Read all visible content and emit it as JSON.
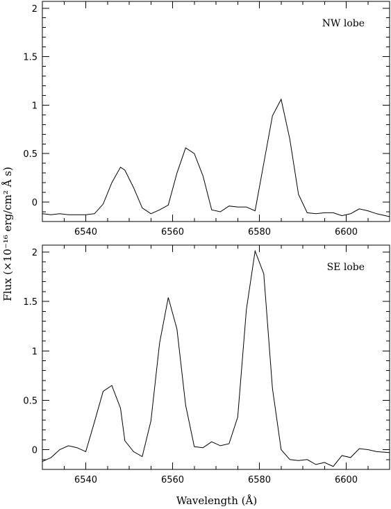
{
  "chart_data": {
    "type": "line",
    "xlabel": "Wavelength (Å)",
    "ylabel": "Flux (×10⁻¹⁶ erg/cm² Å s)",
    "panels": [
      {
        "annotation": "NW lobe",
        "xlim": [
          6530,
          6610
        ],
        "ylim": [
          -0.2,
          2.07
        ],
        "xticks": [
          6540,
          6560,
          6580,
          6600
        ],
        "yticks": [
          0,
          0.5,
          1,
          1.5,
          2
        ],
        "ytick_labels": [
          "0",
          "0.5",
          "1",
          "1.5",
          "2"
        ],
        "x": [
          6530,
          6532,
          6534,
          6536,
          6538,
          6540,
          6542,
          6544,
          6546,
          6548,
          6549,
          6551,
          6553,
          6555,
          6557,
          6559,
          6561,
          6563,
          6565,
          6567,
          6569,
          6571,
          6573,
          6575,
          6577,
          6579,
          6581,
          6583,
          6585,
          6587,
          6589,
          6591,
          6593,
          6595,
          6597,
          6599,
          6601,
          6603,
          6605,
          6607,
          6610
        ],
        "y": [
          -0.12,
          -0.13,
          -0.12,
          -0.13,
          -0.13,
          -0.13,
          -0.12,
          -0.02,
          0.2,
          0.36,
          0.33,
          0.15,
          -0.06,
          -0.12,
          -0.08,
          -0.03,
          0.3,
          0.56,
          0.5,
          0.27,
          -0.08,
          -0.1,
          -0.04,
          -0.05,
          -0.05,
          -0.09,
          0.4,
          0.89,
          1.06,
          0.65,
          0.08,
          -0.11,
          -0.12,
          -0.11,
          -0.11,
          -0.14,
          -0.12,
          -0.07,
          -0.09,
          -0.12,
          -0.15
        ]
      },
      {
        "annotation": "SE lobe",
        "xlim": [
          6530,
          6610
        ],
        "ylim": [
          -0.2,
          2.07
        ],
        "xticks": [
          6540,
          6560,
          6580,
          6600
        ],
        "yticks": [
          0,
          0.5,
          1,
          1.5,
          2
        ],
        "ytick_labels": [
          "0",
          "0.5",
          "1",
          "1.5",
          "2"
        ],
        "x": [
          6530,
          6532,
          6534,
          6536,
          6538,
          6540,
          6542,
          6544,
          6546,
          6548,
          6549,
          6551,
          6553,
          6555,
          6557,
          6559,
          6561,
          6563,
          6565,
          6567,
          6569,
          6571,
          6573,
          6575,
          6577,
          6579,
          6581,
          6583,
          6585,
          6587,
          6589,
          6591,
          6593,
          6595,
          6597,
          6599,
          6601,
          6603,
          6605,
          6607,
          6610
        ],
        "y": [
          -0.12,
          -0.08,
          0.0,
          0.04,
          0.02,
          -0.02,
          0.28,
          0.59,
          0.65,
          0.42,
          0.09,
          -0.02,
          -0.07,
          0.29,
          1.08,
          1.54,
          1.22,
          0.45,
          0.03,
          0.02,
          0.08,
          0.04,
          0.06,
          0.33,
          1.42,
          2.01,
          1.78,
          0.62,
          0.0,
          -0.1,
          -0.11,
          -0.1,
          -0.15,
          -0.13,
          -0.17,
          -0.06,
          -0.08,
          0.01,
          0.0,
          -0.02,
          -0.03
        ]
      }
    ]
  }
}
